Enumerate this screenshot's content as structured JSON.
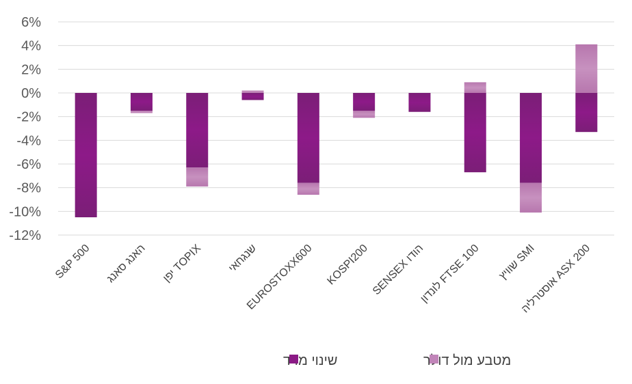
{
  "chart_data": {
    "type": "bar",
    "stacked": true,
    "categories": [
      "S&P 500",
      "האנג סאנג",
      "יפן TOPIX",
      "שנגחאי",
      "EUROSTOXX600",
      "KOSPI200",
      "SENSEX הודו",
      "לונדון FTSE 100",
      "שוויץ SMI",
      "אוסטרליה ASX 200"
    ],
    "series": [
      {
        "name": "שינוי מדד",
        "color": "#8b1a85",
        "values": [
          -10.5,
          -1.5,
          -6.3,
          -0.6,
          -7.6,
          -1.5,
          -1.6,
          -6.7,
          -7.6,
          -3.3
        ]
      },
      {
        "name": "מטבע מול דולר",
        "color": "#c185b9",
        "values": [
          0.0,
          -0.2,
          -1.6,
          0.2,
          -1.0,
          -0.6,
          0.0,
          0.9,
          -2.5,
          4.1
        ]
      }
    ],
    "y_ticks": [
      "6%",
      "4%",
      "2%",
      "0%",
      "-2%",
      "-4%",
      "-6%",
      "-8%",
      "-10%",
      "-12%"
    ],
    "ylim": [
      -12,
      6
    ],
    "grid": true,
    "legend_position": "bottom",
    "legend": [
      "שינוי מדד",
      "מטבע מול דולר"
    ]
  }
}
